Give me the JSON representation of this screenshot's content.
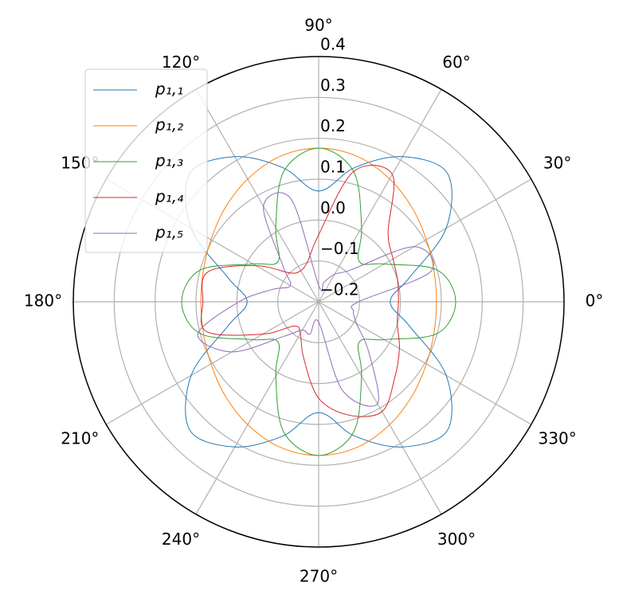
{
  "chart_data": {
    "type": "polar",
    "theta": [
      0,
      15,
      30,
      45,
      60,
      75,
      90,
      105,
      120,
      135,
      150,
      165,
      180,
      195,
      210,
      225,
      240,
      255,
      270,
      285,
      300,
      315,
      330,
      345
    ],
    "series": [
      {
        "name": "p₁,₁",
        "color": "#1f77b4",
        "values": [
          -0.025,
          0.03,
          0.16,
          0.245,
          0.21,
          0.14,
          0.071,
          0.14,
          0.21,
          0.245,
          0.16,
          0.03,
          -0.025,
          0.03,
          0.16,
          0.245,
          0.21,
          0.14,
          0.071,
          0.14,
          0.21,
          0.245,
          0.16,
          0.03
        ]
      },
      {
        "name": "p₁,₂",
        "color": "#ff7f0e",
        "values": [
          0.088,
          0.092,
          0.104,
          0.124,
          0.147,
          0.168,
          0.176,
          0.168,
          0.147,
          0.124,
          0.104,
          0.092,
          0.088,
          0.092,
          0.104,
          0.124,
          0.147,
          0.168,
          0.176,
          0.168,
          0.147,
          0.124,
          0.104,
          0.092
        ]
      },
      {
        "name": "p₁,₃",
        "color": "#2ca02c",
        "values": [
          0.135,
          0.1,
          -0.015,
          -0.06,
          0.01,
          0.13,
          0.176,
          0.13,
          0.01,
          -0.06,
          -0.015,
          0.1,
          0.135,
          0.1,
          -0.015,
          -0.06,
          0.01,
          0.13,
          0.176,
          0.13,
          0.01,
          -0.06,
          -0.015,
          0.1
        ]
      },
      {
        "name": "p₁,₄",
        "color": "#d62728",
        "values": [
          -0.005,
          0.0,
          0.01,
          0.04,
          0.16,
          0.13,
          -0.036,
          -0.097,
          -0.112,
          -0.1,
          -0.023,
          0.081,
          0.083,
          0.083,
          -0.042,
          -0.116,
          -0.11,
          -0.058,
          0.036,
          0.087,
          0.11,
          0.063,
          0.028,
          -0.001
        ]
      },
      {
        "name": "p₁,₅",
        "color": "#9467bd",
        "values": [
          -0.103,
          0.083,
          0.07,
          -0.09,
          -0.122,
          -0.15,
          -0.16,
          0.06,
          0.07,
          -0.077,
          -0.12,
          -0.083,
          -0.005,
          0.106,
          0.045,
          -0.081,
          -0.12,
          -0.118,
          -0.15,
          0.024,
          0.088,
          -0.027,
          -0.093,
          -0.112
        ]
      }
    ],
    "rlim": [
      -0.2,
      0.4
    ],
    "rticks": [
      {
        "value": -0.2,
        "label": "−0.2"
      },
      {
        "value": -0.1,
        "label": "−0.1"
      },
      {
        "value": 0.0,
        "label": "0.0"
      },
      0.1,
      0.2,
      0.3,
      0.4
    ],
    "thetaticks": [
      {
        "value": 0,
        "label": "0°"
      },
      {
        "value": 30,
        "label": "30°"
      },
      {
        "value": 60,
        "label": "60°"
      },
      {
        "value": 90,
        "label": "90°"
      },
      {
        "value": 120,
        "label": "120°"
      },
      {
        "value": 150,
        "label": "150°"
      },
      {
        "value": 180,
        "label": "180°"
      },
      {
        "value": 210,
        "label": "210°"
      },
      {
        "value": 240,
        "label": "240°"
      },
      {
        "value": 270,
        "label": "270°"
      },
      {
        "value": 300,
        "label": "300°"
      },
      {
        "value": 330,
        "label": "330°"
      }
    ],
    "grid": true,
    "legend": "upper left"
  }
}
